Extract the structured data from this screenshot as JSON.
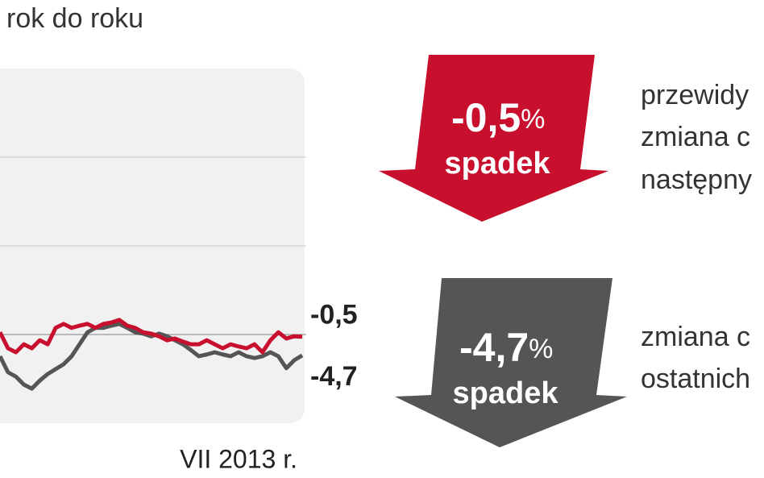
{
  "subtitle": "rok do roku",
  "chart_data": {
    "type": "line",
    "categories": [
      null,
      null,
      null,
      null,
      null,
      null,
      null,
      null,
      null,
      null,
      null,
      null,
      null,
      null,
      null,
      null,
      null,
      null,
      null,
      null,
      null,
      null,
      null,
      null,
      null,
      null,
      null,
      null,
      null,
      null,
      "VII 2013 r.",
      null,
      null,
      null,
      null,
      null,
      null,
      null,
      null
    ],
    "series": [
      {
        "color": "#c8102e",
        "values": [
          0.5,
          -3.1,
          -4,
          -2.2,
          -3.1,
          -1.3,
          -2.2,
          1.5,
          2.4,
          1.5,
          2,
          2.4,
          1.5,
          2.4,
          2.7,
          3.3,
          2,
          1.5,
          0.5,
          0.2,
          -0.4,
          -1.3,
          -0.9,
          -1.6,
          -2.2,
          -2.2,
          -1.3,
          -2.2,
          -3.1,
          -2.2,
          -2.7,
          -3.1,
          -2.2,
          -4,
          -1.3,
          0.5,
          -0.9,
          -0.4,
          -0.5
        ],
        "value_labels": [
          null,
          null,
          null,
          null,
          null,
          null,
          null,
          null,
          null,
          null,
          null,
          null,
          null,
          null,
          null,
          null,
          null,
          null,
          null,
          null,
          null,
          null,
          null,
          null,
          null,
          null,
          null,
          null,
          null,
          null,
          null,
          null,
          null,
          null,
          null,
          null,
          null,
          null,
          "-0,5"
        ]
      },
      {
        "color": "#555555",
        "values": [
          -4.9,
          -8.5,
          -9.5,
          -11.3,
          -12.2,
          -10.4,
          -8.9,
          -7.8,
          -6.7,
          -4.9,
          -2.2,
          0.5,
          1.5,
          1.5,
          2,
          2.4,
          1.5,
          0.5,
          0.2,
          -0.4,
          0.2,
          -0.4,
          -1.3,
          -2.2,
          -3.5,
          -4.9,
          -4.5,
          -4,
          -4.5,
          -4.9,
          -4,
          -4.9,
          -5.3,
          -4.9,
          -4,
          -4.9,
          -7.6,
          -5.8,
          -4.7
        ],
        "value_labels": [
          null,
          null,
          null,
          null,
          null,
          null,
          null,
          null,
          null,
          null,
          null,
          null,
          null,
          null,
          null,
          null,
          null,
          null,
          null,
          null,
          null,
          null,
          null,
          null,
          null,
          null,
          null,
          null,
          null,
          null,
          null,
          null,
          null,
          null,
          null,
          null,
          null,
          null,
          "-4,7"
        ]
      }
    ],
    "ylim": [
      -20,
      60
    ],
    "yticks": [
      0,
      20,
      40
    ],
    "grid": true
  },
  "callouts": [
    {
      "value": "-0,5",
      "unit": "%",
      "word": "spadek",
      "color": "#c8102e",
      "text": [
        "przewidy",
        "zmiana c",
        "następny"
      ]
    },
    {
      "value": "-4,7",
      "unit": "%",
      "word": "spadek",
      "color": "#555555",
      "text": [
        "zmiana c",
        "ostatnich"
      ]
    }
  ]
}
